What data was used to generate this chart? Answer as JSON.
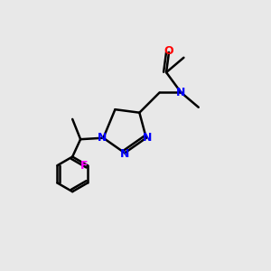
{
  "background_color": "#e8e8e8",
  "bond_color": "#000000",
  "atom_colors": {
    "N": "#0000ff",
    "O": "#ff0000",
    "F": "#ff00ff",
    "C": "#000000"
  },
  "figsize": [
    3.0,
    3.0
  ],
  "dpi": 100
}
